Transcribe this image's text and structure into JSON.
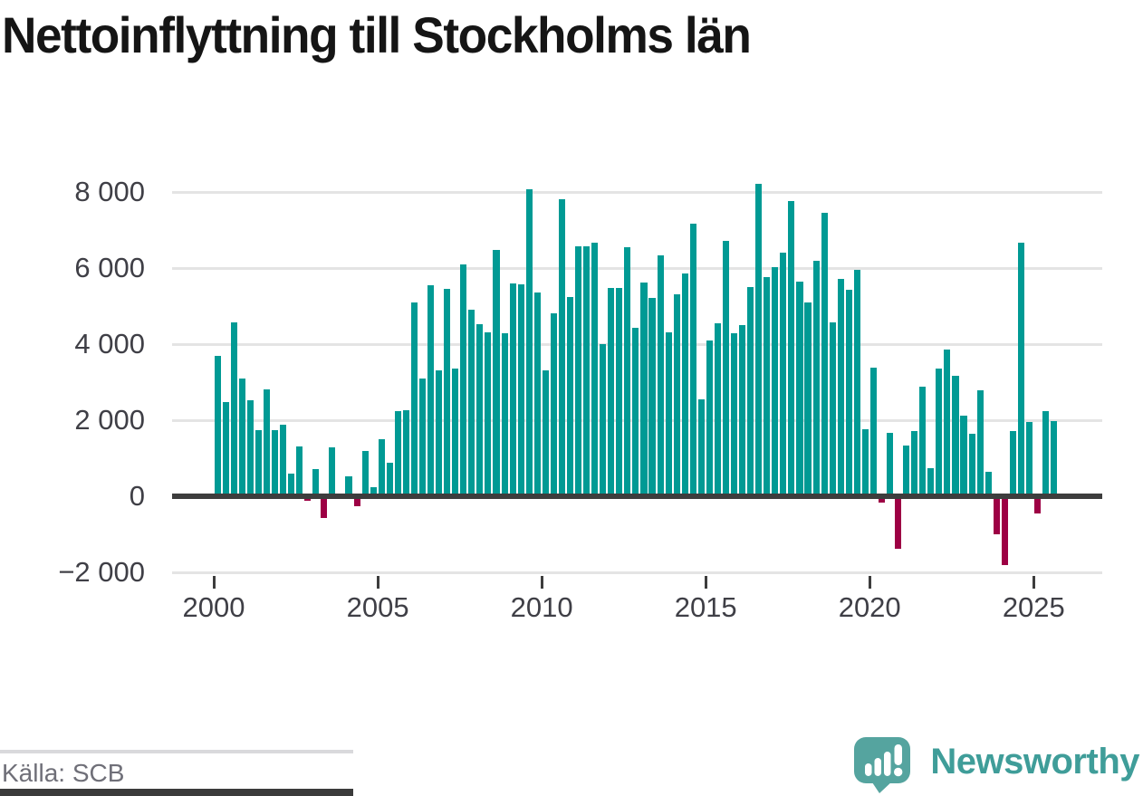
{
  "title": "Nettoinflyttning till Stockholms län",
  "source_label": "Källa: SCB",
  "brand": {
    "name": "Newsworthy"
  },
  "colors": {
    "positive_bar": "#009a94",
    "negative_bar": "#9d0044",
    "gridline": "#e4e4e4",
    "zero_line": "#3d3d3d",
    "axis_text": "#3f3f46",
    "title_text": "#151515",
    "source_text": "#6f6f78",
    "brand_text": "#3f9d99",
    "logo_bubble": "#55a49f"
  },
  "chart_data": {
    "type": "bar",
    "title": "Nettoinflyttning till Stockholms län",
    "x_start": "2000 Q1",
    "x_frequency": "quarterly",
    "xlabel": "",
    "ylabel": "",
    "ylim": [
      -2000,
      8400
    ],
    "grid": "horizontal",
    "legend": "none",
    "y_ticks": [
      {
        "value": 8000,
        "label": "8 000"
      },
      {
        "value": 6000,
        "label": "6 000"
      },
      {
        "value": 4000,
        "label": "4 000"
      },
      {
        "value": 2000,
        "label": "2 000"
      },
      {
        "value": 0,
        "label": "0"
      },
      {
        "value": -2000,
        "label": "−2 000"
      }
    ],
    "x_ticks": [
      {
        "year": 2000,
        "label": "2000"
      },
      {
        "year": 2005,
        "label": "2005"
      },
      {
        "year": 2010,
        "label": "2010"
      },
      {
        "year": 2015,
        "label": "2015"
      },
      {
        "year": 2020,
        "label": "2020"
      },
      {
        "year": 2025,
        "label": "2025"
      }
    ],
    "values": [
      3700,
      2480,
      4580,
      3100,
      2520,
      1750,
      2800,
      1750,
      1880,
      590,
      1310,
      -120,
      720,
      -570,
      1290,
      30,
      530,
      -250,
      1200,
      240,
      1500,
      890,
      2250,
      2270,
      5100,
      3090,
      5560,
      3300,
      5450,
      3360,
      6100,
      4900,
      4520,
      4310,
      6480,
      4290,
      5600,
      5570,
      8070,
      5370,
      3310,
      4820,
      7810,
      5240,
      6570,
      6570,
      6660,
      4000,
      5480,
      5480,
      6550,
      4440,
      5620,
      5210,
      6330,
      4310,
      5320,
      5860,
      7170,
      2550,
      4100,
      4550,
      6710,
      4280,
      4490,
      5500,
      8220,
      5770,
      6030,
      6400,
      7760,
      5640,
      5090,
      6200,
      7450,
      4570,
      5720,
      5440,
      5950,
      1770,
      3380,
      -170,
      1670,
      -1370,
      1340,
      1710,
      2880,
      740,
      3360,
      3870,
      3160,
      2110,
      1650,
      2790,
      650,
      -1000,
      -1820,
      1720,
      6670,
      1960,
      -440,
      2250,
      1970
    ]
  }
}
